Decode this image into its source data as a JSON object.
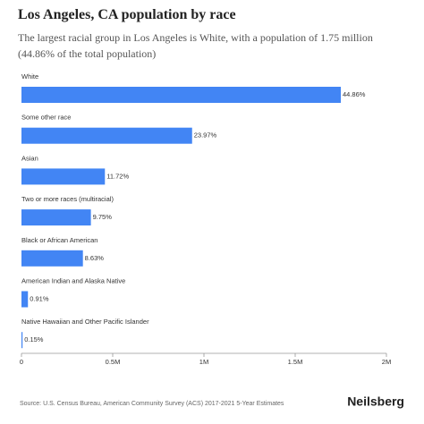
{
  "chart_data": {
    "type": "barh",
    "title": "Los Angeles, CA population by race",
    "subtitle": "The largest racial group in Los Angeles is White, with a population of 1.75 million (44.86% of the total population)",
    "categories": [
      "White",
      "Some other race",
      "Asian",
      "Two or more races (multiracial)",
      "Black or African American",
      "American Indian and Alaska Native",
      "Native Hawaiian and Other Pacific Islander"
    ],
    "values": [
      1750000,
      935000,
      457200,
      380400,
      336700,
      35500,
      5850
    ],
    "value_labels": [
      "44.86%",
      "23.97%",
      "11.72%",
      "9.75%",
      "8.63%",
      "0.91%",
      "0.15%"
    ],
    "color": "#4285f4",
    "xlim": [
      0,
      2000000
    ],
    "xticks": [
      0,
      {
        "value": 500000,
        "label": "0.5M"
      },
      {
        "value": 1000000,
        "label": "1M"
      },
      {
        "value": 1500000,
        "label": "1.5M"
      },
      {
        "value": 2000000,
        "label": "2M"
      }
    ],
    "grid": false,
    "source": "Source: U.S. Census Bureau, American Community Survey (ACS) 2017-2021 5-Year Estimates",
    "brand": "Neilsberg"
  }
}
